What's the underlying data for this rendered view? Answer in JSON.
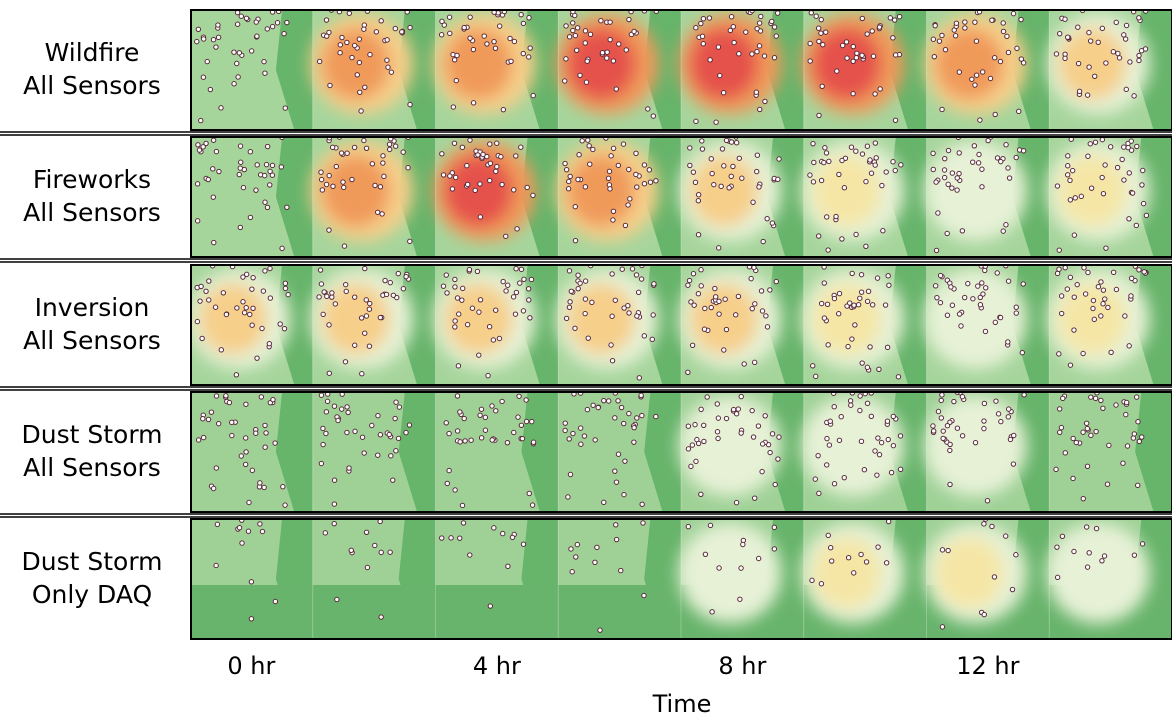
{
  "rows": [
    {
      "line1": "Wildfire",
      "line2": "All Sensors"
    },
    {
      "line1": "Fireworks",
      "line2": "All Sensors"
    },
    {
      "line1": "Inversion",
      "line2": "All Sensors"
    },
    {
      "line1": "Dust Storm",
      "line2": "All Sensors"
    },
    {
      "line1": "Dust Storm",
      "line2": "Only DAQ"
    }
  ],
  "time_labels": [
    "0 hr",
    "4 hr",
    "8 hr",
    "12 hr"
  ],
  "axis_title": "Time"
}
